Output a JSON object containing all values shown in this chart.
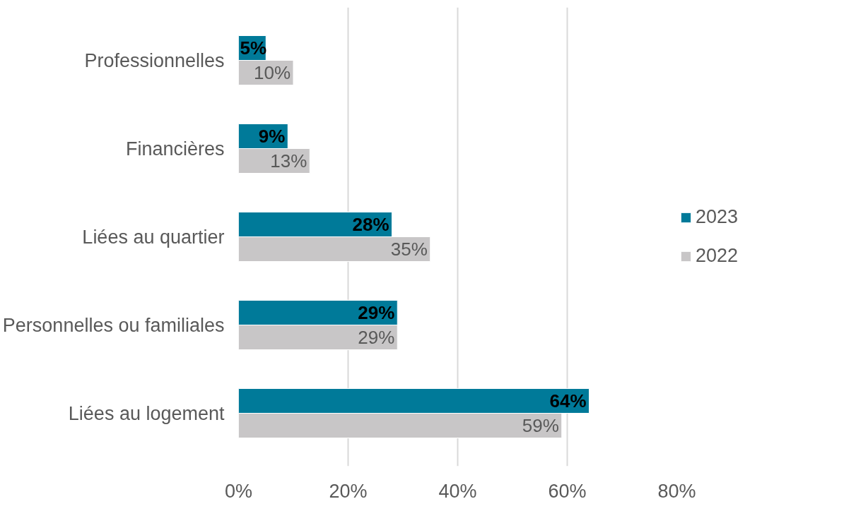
{
  "chart_data": {
    "type": "bar",
    "orientation": "horizontal",
    "categories": [
      "Professionnelles",
      "Financières",
      "Liées au quartier",
      "Personnelles ou familiales",
      "Liées au logement"
    ],
    "series": [
      {
        "name": "2023",
        "color": "#007a99",
        "values": [
          5,
          9,
          28,
          29,
          64
        ],
        "value_labels": [
          "5%",
          "9%",
          "28%",
          "29%",
          "64%"
        ]
      },
      {
        "name": "2022",
        "color": "#c8c6c7",
        "values": [
          10,
          13,
          35,
          29,
          59
        ],
        "value_labels": [
          "10%",
          "13%",
          "35%",
          "29%",
          "59%"
        ]
      }
    ],
    "xlim": [
      0,
      80
    ],
    "xticks": [
      {
        "value": 0,
        "label": "0%"
      },
      {
        "value": 20,
        "label": "20%"
      },
      {
        "value": 40,
        "label": "40%"
      },
      {
        "value": 60,
        "label": "60%"
      },
      {
        "value": 80,
        "label": "80%"
      }
    ],
    "grid": "x",
    "legend": "right"
  }
}
